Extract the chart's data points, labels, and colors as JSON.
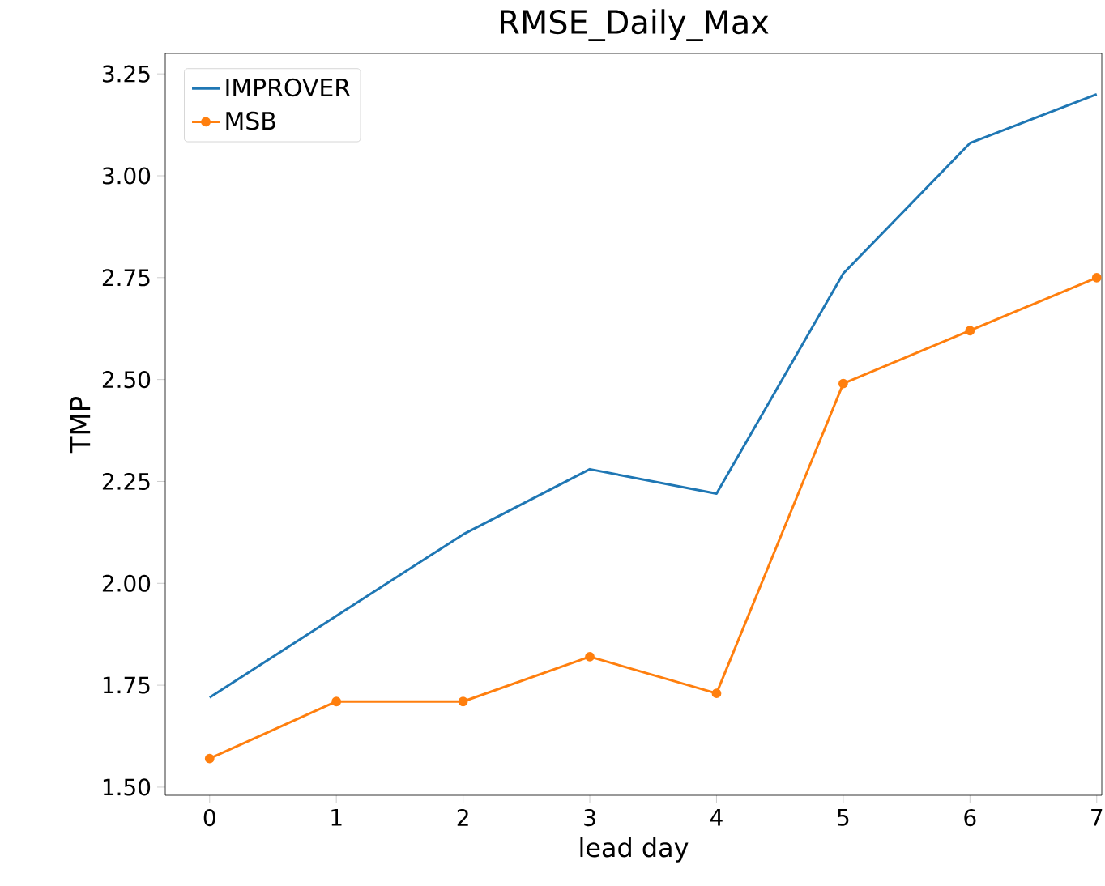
{
  "chart_data": {
    "type": "line",
    "title": "RMSE_Daily_Max",
    "xlabel": "lead day",
    "ylabel": "TMP",
    "x": [
      0,
      1,
      2,
      3,
      4,
      5,
      6,
      7
    ],
    "series": [
      {
        "name": "IMPROVER",
        "color": "#1f77b4",
        "marker": "none",
        "values": [
          1.72,
          1.92,
          2.12,
          2.28,
          2.22,
          2.76,
          3.08,
          3.2
        ]
      },
      {
        "name": "MSB",
        "color": "#ff7f0e",
        "marker": "circle",
        "values": [
          1.57,
          1.71,
          1.71,
          1.82,
          1.73,
          2.49,
          2.62,
          2.75
        ]
      }
    ],
    "xlim": [
      -0.35,
      7.04
    ],
    "ylim": [
      1.48,
      3.3
    ],
    "xticks": [
      0,
      1,
      2,
      3,
      4,
      5,
      6,
      7
    ],
    "yticks": [
      {
        "value": 1.5,
        "label": "1.50"
      },
      {
        "value": 1.75,
        "label": "1.75"
      },
      {
        "value": 2.0,
        "label": "2.00"
      },
      {
        "value": 2.25,
        "label": "2.25"
      },
      {
        "value": 2.5,
        "label": "2.50"
      },
      {
        "value": 2.75,
        "label": "2.75"
      },
      {
        "value": 3.0,
        "label": "3.00"
      },
      {
        "value": 3.25,
        "label": "3.25"
      }
    ],
    "grid": false,
    "legend": "top left",
    "line_style": "solid"
  }
}
